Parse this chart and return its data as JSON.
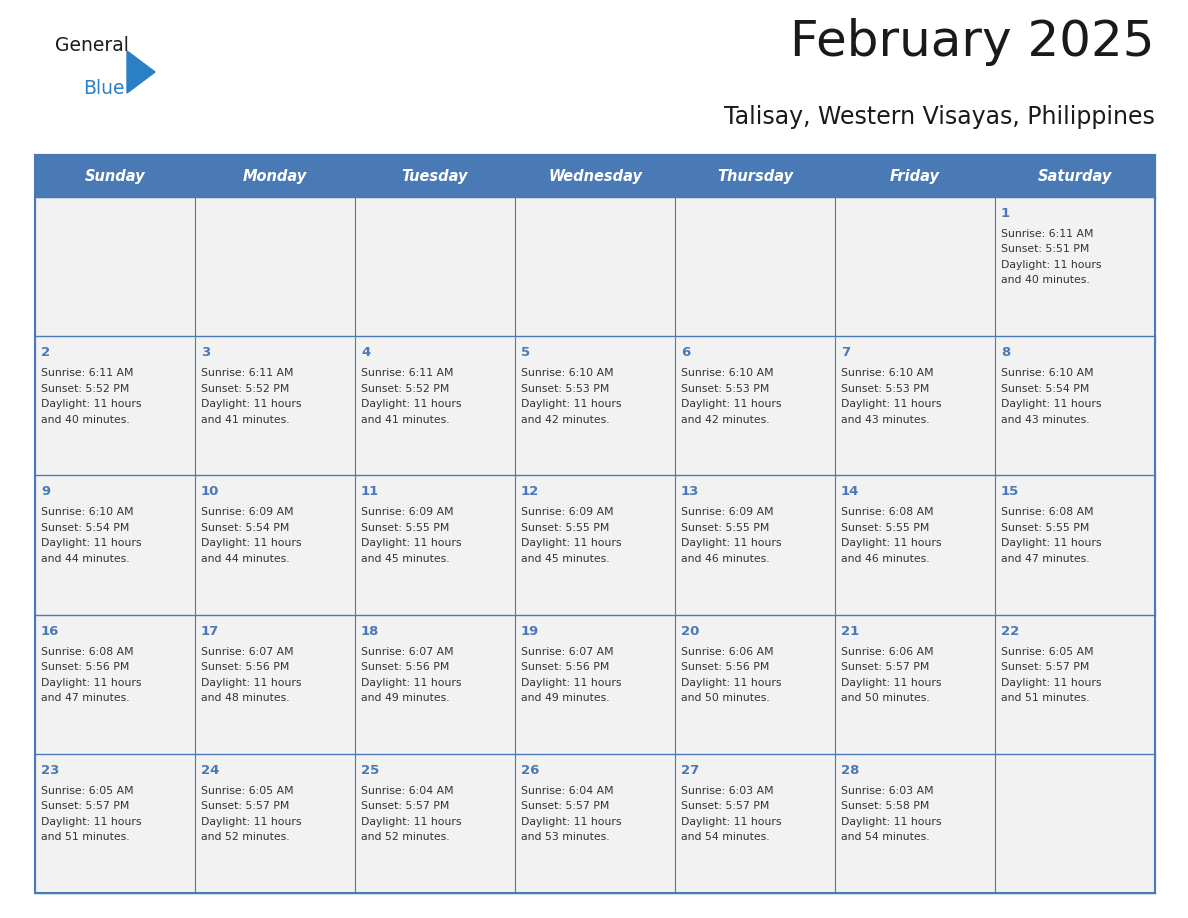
{
  "title": "February 2025",
  "subtitle": "Talisay, Western Visayas, Philippines",
  "days_of_week": [
    "Sunday",
    "Monday",
    "Tuesday",
    "Wednesday",
    "Thursday",
    "Friday",
    "Saturday"
  ],
  "header_bg": "#4a7ab5",
  "header_text": "#ffffff",
  "cell_bg": "#f2f2f2",
  "border_color": "#4a7ab5",
  "separator_color": "#4a7ab5",
  "day_num_color": "#4a7ab5",
  "text_color": "#333333",
  "logo_general_color": "#1a1a1a",
  "logo_blue_color": "#2b7fc4",
  "logo_triangle_color": "#2b7fc4",
  "title_color": "#1a1a1a",
  "weeks": [
    [
      {
        "day": 0
      },
      {
        "day": 0
      },
      {
        "day": 0
      },
      {
        "day": 0
      },
      {
        "day": 0
      },
      {
        "day": 0
      },
      {
        "day": 1,
        "sunrise": "6:11 AM",
        "sunset": "5:51 PM",
        "daylight_line1": "11 hours",
        "daylight_line2": "and 40 minutes."
      }
    ],
    [
      {
        "day": 2,
        "sunrise": "6:11 AM",
        "sunset": "5:52 PM",
        "daylight_line1": "11 hours",
        "daylight_line2": "and 40 minutes."
      },
      {
        "day": 3,
        "sunrise": "6:11 AM",
        "sunset": "5:52 PM",
        "daylight_line1": "11 hours",
        "daylight_line2": "and 41 minutes."
      },
      {
        "day": 4,
        "sunrise": "6:11 AM",
        "sunset": "5:52 PM",
        "daylight_line1": "11 hours",
        "daylight_line2": "and 41 minutes."
      },
      {
        "day": 5,
        "sunrise": "6:10 AM",
        "sunset": "5:53 PM",
        "daylight_line1": "11 hours",
        "daylight_line2": "and 42 minutes."
      },
      {
        "day": 6,
        "sunrise": "6:10 AM",
        "sunset": "5:53 PM",
        "daylight_line1": "11 hours",
        "daylight_line2": "and 42 minutes."
      },
      {
        "day": 7,
        "sunrise": "6:10 AM",
        "sunset": "5:53 PM",
        "daylight_line1": "11 hours",
        "daylight_line2": "and 43 minutes."
      },
      {
        "day": 8,
        "sunrise": "6:10 AM",
        "sunset": "5:54 PM",
        "daylight_line1": "11 hours",
        "daylight_line2": "and 43 minutes."
      }
    ],
    [
      {
        "day": 9,
        "sunrise": "6:10 AM",
        "sunset": "5:54 PM",
        "daylight_line1": "11 hours",
        "daylight_line2": "and 44 minutes."
      },
      {
        "day": 10,
        "sunrise": "6:09 AM",
        "sunset": "5:54 PM",
        "daylight_line1": "11 hours",
        "daylight_line2": "and 44 minutes."
      },
      {
        "day": 11,
        "sunrise": "6:09 AM",
        "sunset": "5:55 PM",
        "daylight_line1": "11 hours",
        "daylight_line2": "and 45 minutes."
      },
      {
        "day": 12,
        "sunrise": "6:09 AM",
        "sunset": "5:55 PM",
        "daylight_line1": "11 hours",
        "daylight_line2": "and 45 minutes."
      },
      {
        "day": 13,
        "sunrise": "6:09 AM",
        "sunset": "5:55 PM",
        "daylight_line1": "11 hours",
        "daylight_line2": "and 46 minutes."
      },
      {
        "day": 14,
        "sunrise": "6:08 AM",
        "sunset": "5:55 PM",
        "daylight_line1": "11 hours",
        "daylight_line2": "and 46 minutes."
      },
      {
        "day": 15,
        "sunrise": "6:08 AM",
        "sunset": "5:55 PM",
        "daylight_line1": "11 hours",
        "daylight_line2": "and 47 minutes."
      }
    ],
    [
      {
        "day": 16,
        "sunrise": "6:08 AM",
        "sunset": "5:56 PM",
        "daylight_line1": "11 hours",
        "daylight_line2": "and 47 minutes."
      },
      {
        "day": 17,
        "sunrise": "6:07 AM",
        "sunset": "5:56 PM",
        "daylight_line1": "11 hours",
        "daylight_line2": "and 48 minutes."
      },
      {
        "day": 18,
        "sunrise": "6:07 AM",
        "sunset": "5:56 PM",
        "daylight_line1": "11 hours",
        "daylight_line2": "and 49 minutes."
      },
      {
        "day": 19,
        "sunrise": "6:07 AM",
        "sunset": "5:56 PM",
        "daylight_line1": "11 hours",
        "daylight_line2": "and 49 minutes."
      },
      {
        "day": 20,
        "sunrise": "6:06 AM",
        "sunset": "5:56 PM",
        "daylight_line1": "11 hours",
        "daylight_line2": "and 50 minutes."
      },
      {
        "day": 21,
        "sunrise": "6:06 AM",
        "sunset": "5:57 PM",
        "daylight_line1": "11 hours",
        "daylight_line2": "and 50 minutes."
      },
      {
        "day": 22,
        "sunrise": "6:05 AM",
        "sunset": "5:57 PM",
        "daylight_line1": "11 hours",
        "daylight_line2": "and 51 minutes."
      }
    ],
    [
      {
        "day": 23,
        "sunrise": "6:05 AM",
        "sunset": "5:57 PM",
        "daylight_line1": "11 hours",
        "daylight_line2": "and 51 minutes."
      },
      {
        "day": 24,
        "sunrise": "6:05 AM",
        "sunset": "5:57 PM",
        "daylight_line1": "11 hours",
        "daylight_line2": "and 52 minutes."
      },
      {
        "day": 25,
        "sunrise": "6:04 AM",
        "sunset": "5:57 PM",
        "daylight_line1": "11 hours",
        "daylight_line2": "and 52 minutes."
      },
      {
        "day": 26,
        "sunrise": "6:04 AM",
        "sunset": "5:57 PM",
        "daylight_line1": "11 hours",
        "daylight_line2": "and 53 minutes."
      },
      {
        "day": 27,
        "sunrise": "6:03 AM",
        "sunset": "5:57 PM",
        "daylight_line1": "11 hours",
        "daylight_line2": "and 54 minutes."
      },
      {
        "day": 28,
        "sunrise": "6:03 AM",
        "sunset": "5:58 PM",
        "daylight_line1": "11 hours",
        "daylight_line2": "and 54 minutes."
      },
      {
        "day": 0
      }
    ]
  ]
}
